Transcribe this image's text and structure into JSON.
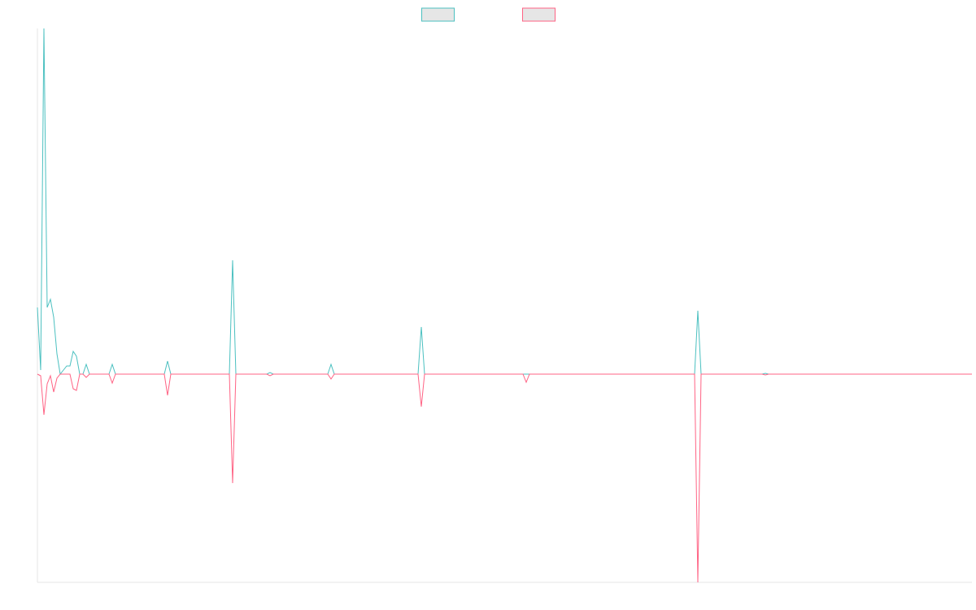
{
  "chart_data": {
    "type": "line",
    "x": [
      0,
      1,
      2,
      3,
      4,
      5,
      6,
      7,
      8,
      9,
      10,
      11,
      12,
      13,
      14,
      15,
      16,
      22,
      23,
      24,
      39,
      40,
      41,
      59,
      60,
      61,
      70.5,
      71.5,
      72.5,
      89.25,
      90.25,
      91.25,
      117,
      118,
      119,
      149.25,
      150.25,
      151.25,
      202,
      203,
      204,
      222.75,
      223.75,
      224.75,
      287.25
    ],
    "series": [
      {
        "color": "#4bc0c0",
        "values": [
          82,
          5,
          425,
          82,
          92,
          70,
          25,
          0,
          5,
          10,
          10,
          28,
          22,
          0,
          0,
          12,
          0,
          0,
          12,
          0,
          0,
          16,
          0,
          0,
          140,
          0,
          0,
          2,
          0,
          0,
          12,
          0,
          0,
          58,
          0,
          0,
          0,
          0,
          0,
          78,
          0,
          0,
          1,
          0,
          0
        ]
      },
      {
        "color": "#ff6384",
        "values": [
          0,
          -2,
          -50,
          -12,
          -2,
          -22,
          -5,
          0,
          0,
          0,
          0,
          -18,
          -20,
          0,
          0,
          -4,
          0,
          0,
          -11,
          0,
          0,
          -26,
          0,
          0,
          -134,
          0,
          0,
          -2,
          0,
          0,
          -6,
          0,
          0,
          -40,
          0,
          0,
          -10,
          0,
          0,
          -256,
          0,
          0,
          -1,
          0,
          0
        ]
      }
    ],
    "xlim": [
      0,
      287.25
    ],
    "ylim": [
      -256,
      425
    ],
    "legend": "top"
  }
}
